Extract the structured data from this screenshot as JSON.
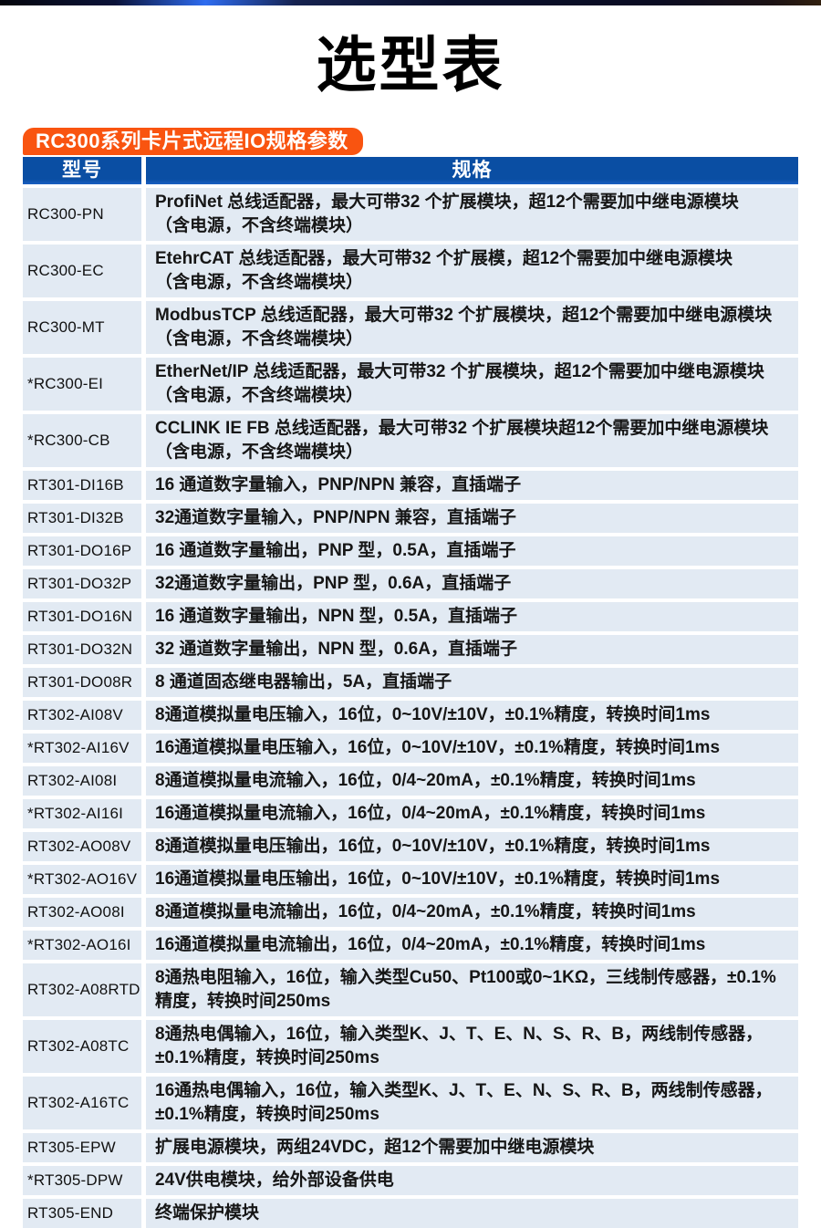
{
  "page": {
    "title": "选型表",
    "badge": "RC300系列卡片式远程IO规格参数"
  },
  "colors": {
    "accent": "#f95410",
    "header_bg": "#0a4ea3",
    "row_bg": "#e2eaf3",
    "text": "#1b1b1b",
    "top_bar": "#0a0f2e"
  },
  "table": {
    "headers": {
      "model": "型号",
      "spec": "规格"
    },
    "rows": [
      {
        "model": "RC300-PN",
        "lines": [
          "ProfiNet 总线适配器，最大可带32 个扩展模块，超12个需要加中继电源模块",
          "（含电源，不含终端模块）"
        ]
      },
      {
        "model": "RC300-EC",
        "lines": [
          "EtehrCAT 总线适配器，最大可带32 个扩展模，超12个需要加中继电源模块",
          "（含电源，不含终端模块）"
        ]
      },
      {
        "model": "RC300-MT",
        "lines": [
          "ModbusTCP 总线适配器，最大可带32 个扩展模块，超12个需要加中继电源模块",
          "（含电源，不含终端模块）"
        ]
      },
      {
        "model": "*RC300-EI",
        "lines": [
          "EtherNet/IP 总线适配器，最大可带32 个扩展模块，超12个需要加中继电源模块",
          "（含电源，不含终端模块）"
        ]
      },
      {
        "model": "*RC300-CB",
        "lines": [
          "CCLINK IE FB  总线适配器，最大可带32 个扩展模块超12个需要加中继电源模块",
          "（含电源，不含终端模块）"
        ]
      },
      {
        "model": "RT301-DI16B",
        "lines": [
          "16 通道数字量输入，PNP/NPN 兼容，直插端子"
        ]
      },
      {
        "model": "RT301-DI32B",
        "lines": [
          "32通道数字量输入，PNP/NPN 兼容，直插端子"
        ]
      },
      {
        "model": "RT301-DO16P",
        "lines": [
          "16 通道数字量输出，PNP 型，0.5A，直插端子"
        ]
      },
      {
        "model": "RT301-DO32P",
        "lines": [
          "32通道数字量输出，PNP 型，0.6A，直插端子"
        ]
      },
      {
        "model": "RT301-DO16N",
        "lines": [
          "16 通道数字量输出，NPN 型，0.5A，直插端子"
        ]
      },
      {
        "model": "RT301-DO32N",
        "lines": [
          "32 通道数字量输出，NPN 型，0.6A，直插端子"
        ]
      },
      {
        "model": "RT301-DO08R",
        "lines": [
          "8 通道固态继电器输出，5A，直插端子"
        ]
      },
      {
        "model": "RT302-AI08V",
        "lines": [
          "8通道模拟量电压输入，16位，0~10V/±10V，±0.1%精度，转换时间1ms"
        ]
      },
      {
        "model": "*RT302-AI16V",
        "lines": [
          "16通道模拟量电压输入，16位，0~10V/±10V，±0.1%精度，转换时间1ms"
        ]
      },
      {
        "model": "RT302-AI08I",
        "lines": [
          "8通道模拟量电流输入，16位，0/4~20mA，±0.1%精度，转换时间1ms"
        ]
      },
      {
        "model": "*RT302-AI16I",
        "lines": [
          "16通道模拟量电流输入，16位，0/4~20mA，±0.1%精度，转换时间1ms"
        ]
      },
      {
        "model": "RT302-AO08V",
        "lines": [
          "8通道模拟量电压输出，16位，0~10V/±10V，±0.1%精度，转换时间1ms"
        ]
      },
      {
        "model": "*RT302-AO16V",
        "lines": [
          "16通道模拟量电压输出，16位，0~10V/±10V，±0.1%精度，转换时间1ms"
        ]
      },
      {
        "model": "RT302-AO08I",
        "lines": [
          "8通道模拟量电流输出，16位，0/4~20mA，±0.1%精度，转换时间1ms"
        ]
      },
      {
        "model": "*RT302-AO16I",
        "lines": [
          "16通道模拟量电流输出，16位，0/4~20mA，±0.1%精度，转换时间1ms"
        ]
      },
      {
        "model": "RT302-A08RTD",
        "lines": [
          "8通热电阻输入，16位，输入类型Cu50、Pt100或0~1KΩ，三线制传感器，±0.1%精度，转换时间250ms"
        ]
      },
      {
        "model": "RT302-A08TC",
        "lines": [
          "8通热电偶输入，16位，输入类型K、J、T、E、N、S、R、B，两线制传感器，±0.1%精度，转换时间250ms"
        ]
      },
      {
        "model": "RT302-A16TC",
        "lines": [
          "16通热电偶输入，16位，输入类型K、J、T、E、N、S、R、B，两线制传感器，±0.1%精度，转换时间250ms"
        ]
      },
      {
        "model": "RT305-EPW",
        "lines": [
          "扩展电源模块，两组24VDC，超12个需要加中继电源模块"
        ]
      },
      {
        "model": "*RT305-DPW",
        "lines": [
          "24V供电模块，给外部设备供电"
        ]
      },
      {
        "model": "RT305-END",
        "lines": [
          "终端保护模块"
        ]
      }
    ]
  }
}
